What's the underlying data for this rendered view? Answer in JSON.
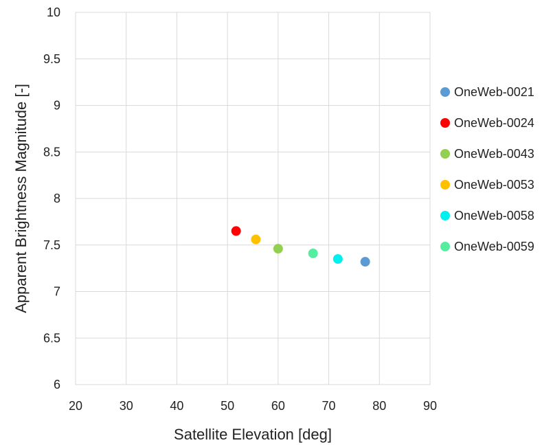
{
  "chart_data": {
    "type": "scatter",
    "title": "",
    "xlabel": "Satellite Elevation [deg]",
    "ylabel": "Apparent Brightness Magnitude [-]",
    "xlim": [
      20,
      90
    ],
    "ylim": [
      6,
      10
    ],
    "xticks": [
      20,
      30,
      40,
      50,
      60,
      70,
      80,
      90
    ],
    "yticks": [
      6,
      6.5,
      7,
      7.5,
      8,
      8.5,
      9,
      9.5,
      10
    ],
    "grid": true,
    "legend_position": "right",
    "series": [
      {
        "name": "OneWeb-0021",
        "color": "#5b9bd5",
        "x": [
          77.2
        ],
        "y": [
          7.32
        ]
      },
      {
        "name": "OneWeb-0024",
        "color": "#ff0000",
        "x": [
          51.7
        ],
        "y": [
          7.65
        ]
      },
      {
        "name": "OneWeb-0043",
        "color": "#92d050",
        "x": [
          60.0
        ],
        "y": [
          7.46
        ]
      },
      {
        "name": "OneWeb-0053",
        "color": "#ffc000",
        "x": [
          55.6
        ],
        "y": [
          7.56
        ]
      },
      {
        "name": "OneWeb-0058",
        "color": "#00f0f0",
        "x": [
          71.8
        ],
        "y": [
          7.35
        ]
      },
      {
        "name": "OneWeb-0059",
        "color": "#55eea0",
        "x": [
          66.9
        ],
        "y": [
          7.41
        ]
      }
    ]
  }
}
